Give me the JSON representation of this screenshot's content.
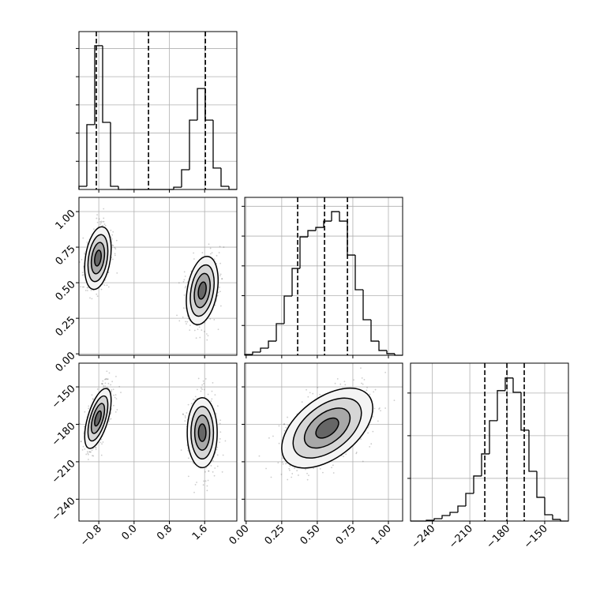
{
  "chart_data": {
    "type": "corner",
    "color": "#000000",
    "grid": true,
    "levels": [
      0.5,
      1,
      1.5,
      2
    ],
    "params": [
      {
        "lim": [
          -1.25,
          2.33
        ],
        "ticks": [
          {
            "value": -0.8,
            "label": "−0.8"
          },
          {
            "value": 0,
            "label": "0.0"
          },
          {
            "value": 0.8,
            "label": "0.8"
          },
          {
            "value": 1.6,
            "label": "1.6"
          }
        ],
        "bins": [
          -1.25,
          -1.071,
          -0.892,
          -0.713,
          -0.534,
          -0.355,
          -0.176,
          0.003,
          0.182,
          0.361,
          0.54,
          0.719,
          0.898,
          1.077,
          1.256,
          1.435,
          1.614,
          1.793,
          1.972,
          2.151,
          2.33
        ],
        "counts": [
          56,
          1150,
          2550,
          1190,
          56,
          0,
          0,
          0,
          0,
          0,
          0,
          0,
          40,
          350,
          1230,
          1790,
          1230,
          380,
          56,
          0
        ],
        "hist_lim": [
          0,
          2800
        ],
        "hist_ticks": [
          500,
          1000,
          1500,
          2000,
          2500
        ],
        "quantiles": [
          -0.856,
          0.327,
          1.617
        ],
        "pairs": []
      },
      {
        "lim": [
          -0.01,
          1.1
        ],
        "ticks": [
          {
            "value": 0,
            "label": "0.00"
          },
          0.25,
          {
            "value": 0.5,
            "label": "0.50"
          },
          0.75,
          {
            "value": 1,
            "label": "1.00"
          }
        ],
        "bins": [
          -0.01,
          0.0455,
          0.101,
          0.1565,
          0.212,
          0.2675,
          0.323,
          0.3785,
          0.434,
          0.4895,
          0.545,
          0.6005,
          0.656,
          0.7115,
          0.767,
          0.8225,
          0.878,
          0.9335,
          0.989,
          1.0445,
          1.1
        ],
        "counts": [
          13,
          53,
          119,
          238,
          530,
          994,
          1457,
          1987,
          2093,
          2146,
          2252,
          2411,
          2252,
          1682,
          1100,
          596,
          238,
          80,
          27,
          0
        ],
        "hist_lim": [
          0,
          2650
        ],
        "hist_ticks": [
          500,
          1000,
          1500,
          2000,
          2500
        ],
        "quantiles": [
          0.362,
          0.551,
          0.712
        ],
        "pairs": [
          {
            "blobs": [
              {
                "center": [
                  -0.82,
                  0.673
                ],
                "sigma": [
                  0.15,
                  0.11
                ],
                "rho": 0.3
              },
              {
                "center": [
                  1.545,
                  0.445
                ],
                "sigma": [
                  0.18,
                  0.12
                ],
                "rho": 0.3
              }
            ]
          }
        ]
      },
      {
        "lim": [
          -257.5,
          -131
        ],
        "ticks": [
          {
            "value": -240,
            "label": "−240"
          },
          {
            "value": -210,
            "label": "−210"
          },
          {
            "value": -180,
            "label": "−180"
          },
          {
            "value": -150,
            "label": "−150"
          }
        ],
        "bins": [
          -257.5,
          -251.175,
          -244.85,
          -238.525,
          -232.2,
          -225.875,
          -219.55,
          -213.225,
          -206.9,
          -200.575,
          -194.25,
          -187.925,
          -181.6,
          -175.275,
          -168.95,
          -162.625,
          -156.3,
          -149.975,
          -143.65,
          -137.325,
          -131
        ],
        "counts": [
          0,
          0,
          9,
          28,
          65,
          102,
          176,
          324,
          528,
          787,
          1176,
          1528,
          1676,
          1509,
          1065,
          583,
          278,
          74,
          19,
          0
        ],
        "hist_lim": [
          0,
          1850
        ],
        "hist_ticks": [
          500,
          1000,
          1500
        ],
        "quantiles": [
          -198,
          -180.3,
          -166.4
        ],
        "pairs": [
          {
            "blobs": [
              {
                "center": [
                  -0.82,
                  -175.3
                ],
                "sigma": [
                  0.15,
                  12
                ],
                "rho": 0.6
              },
              {
                "center": [
                  1.545,
                  -186.7
                ],
                "sigma": [
                  0.17,
                  14
                ],
                "rho": 0
              }
            ]
          },
          {
            "blobs": [
              {
                "center": [
                  0.57,
                  -183
                ],
                "sigma": [
                  0.16,
                  16
                ],
                "rho": 0.5
              }
            ]
          }
        ]
      }
    ]
  }
}
